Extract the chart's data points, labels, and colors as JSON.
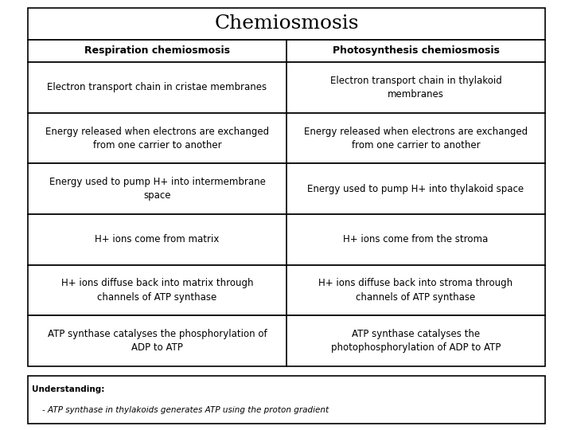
{
  "title": "Chemiosmosis",
  "col1_header": "Respiration chemiosmosis",
  "col2_header": "Photosynthesis chemiosmosis",
  "rows": [
    [
      "Electron transport chain in cristae membranes",
      "Electron transport chain in thylakoid\nmembranes"
    ],
    [
      "Energy released when electrons are exchanged\nfrom one carrier to another",
      "Energy released when electrons are exchanged\nfrom one carrier to another"
    ],
    [
      "Energy used to pump H+ into intermembrane\nspace",
      "Energy used to pump H+ into thylakoid space"
    ],
    [
      "H+ ions come from matrix",
      "H+ ions come from the stroma"
    ],
    [
      "H+ ions diffuse back into matrix through\nchannels of ATP synthase",
      "H+ ions diffuse back into stroma through\nchannels of ATP synthase"
    ],
    [
      "ATP synthase catalyses the phosphorylation of\nADP to ATP",
      "ATP synthase catalyses the\nphotophosphorylation of ADP to ATP"
    ]
  ],
  "understanding_title": "Understanding:",
  "understanding_bullet": "ATP synthase in thylakoids generates ATP using the proton gradient",
  "bg_color": "#ffffff",
  "border_color": "#000000",
  "title_fontsize": 18,
  "header_fontsize": 9,
  "cell_fontsize": 8.5,
  "understanding_fontsize": 7.5
}
